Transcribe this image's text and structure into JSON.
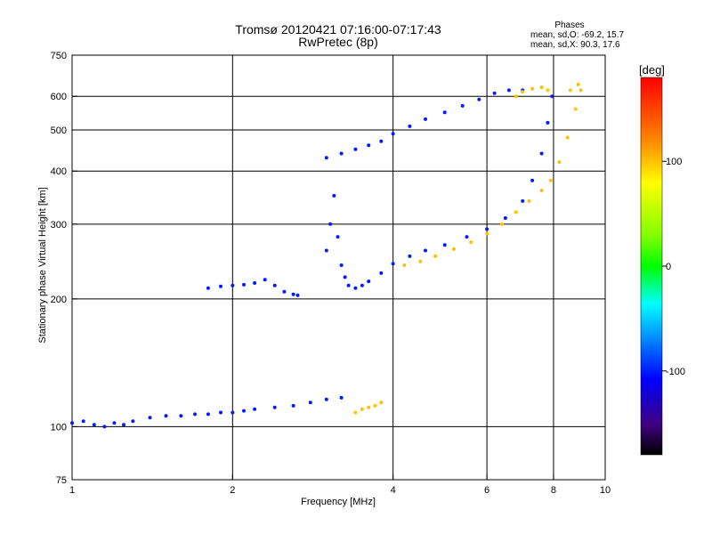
{
  "chart_data": {
    "type": "scatter",
    "title": "Tromsø 20120421 07:16:00-07:17:43",
    "subtitle": "RwPretec (8p)",
    "xlabel": "Frequency [MHz]",
    "ylabel": "Stationary phase Virtual Height [km]",
    "x_scale": "log",
    "y_scale": "log",
    "xlim": [
      1,
      10
    ],
    "ylim": [
      75,
      750
    ],
    "x_ticks": [
      1,
      2,
      4,
      6,
      8,
      10
    ],
    "y_ticks": [
      75,
      100,
      200,
      300,
      400,
      500,
      600,
      750
    ],
    "grid_x": [
      2,
      4,
      6,
      8
    ],
    "grid_y": [
      100,
      200,
      300,
      400,
      500,
      600
    ],
    "phases": {
      "title": "Phases",
      "o_text": "mean, sd,O: -69.2, 15.7",
      "x_text": "mean, sd,X:  90.3, 17.6"
    },
    "colorbar": {
      "label": "[deg]",
      "range": [
        -180,
        180
      ],
      "ticks": [
        100,
        0,
        -100
      ]
    },
    "series": [
      {
        "phase": -100,
        "points": [
          [
            1.0,
            102
          ],
          [
            1.05,
            103
          ],
          [
            1.1,
            101
          ],
          [
            1.15,
            100
          ],
          [
            1.2,
            102
          ],
          [
            1.25,
            101
          ],
          [
            1.3,
            103
          ],
          [
            1.4,
            105
          ],
          [
            1.5,
            106
          ],
          [
            1.6,
            106
          ],
          [
            1.7,
            107
          ],
          [
            1.8,
            107
          ],
          [
            1.9,
            108
          ],
          [
            2.0,
            108
          ],
          [
            2.1,
            109
          ],
          [
            2.2,
            110
          ],
          [
            2.4,
            111
          ],
          [
            2.6,
            112
          ],
          [
            2.8,
            114
          ],
          [
            3.0,
            116
          ],
          [
            3.2,
            117
          ]
        ]
      },
      {
        "phase": -100,
        "points": [
          [
            1.8,
            212
          ],
          [
            1.9,
            214
          ],
          [
            2.0,
            215
          ],
          [
            2.1,
            216
          ],
          [
            2.2,
            218
          ],
          [
            2.3,
            222
          ],
          [
            2.4,
            215
          ],
          [
            2.5,
            208
          ],
          [
            2.6,
            205
          ],
          [
            2.65,
            204
          ]
        ]
      },
      {
        "phase": -100,
        "points": [
          [
            3.0,
            260
          ],
          [
            3.05,
            300
          ],
          [
            3.1,
            350
          ],
          [
            3.15,
            280
          ],
          [
            3.2,
            240
          ],
          [
            3.25,
            225
          ],
          [
            3.3,
            215
          ],
          [
            3.4,
            212
          ],
          [
            3.5,
            215
          ],
          [
            3.6,
            220
          ],
          [
            3.8,
            230
          ],
          [
            4.0,
            242
          ],
          [
            4.3,
            252
          ],
          [
            4.6,
            260
          ],
          [
            5.0,
            268
          ],
          [
            5.5,
            280
          ],
          [
            6.0,
            292
          ],
          [
            6.5,
            310
          ],
          [
            7.0,
            340
          ],
          [
            7.3,
            380
          ],
          [
            7.6,
            440
          ],
          [
            7.8,
            520
          ],
          [
            7.95,
            600
          ]
        ]
      },
      {
        "phase": -100,
        "points": [
          [
            3.0,
            430
          ],
          [
            3.2,
            440
          ],
          [
            3.4,
            450
          ],
          [
            3.6,
            460
          ],
          [
            3.8,
            470
          ],
          [
            4.0,
            490
          ],
          [
            4.3,
            510
          ],
          [
            4.6,
            530
          ],
          [
            5.0,
            550
          ],
          [
            5.4,
            570
          ],
          [
            5.8,
            590
          ],
          [
            6.2,
            610
          ],
          [
            6.6,
            620
          ],
          [
            7.0,
            620
          ]
        ]
      },
      {
        "phase": 100,
        "points": [
          [
            3.4,
            108
          ],
          [
            3.5,
            110
          ],
          [
            3.6,
            111
          ],
          [
            3.7,
            112
          ],
          [
            3.8,
            114
          ]
        ]
      },
      {
        "phase": 100,
        "points": [
          [
            4.2,
            240
          ],
          [
            4.5,
            245
          ],
          [
            4.8,
            252
          ],
          [
            5.2,
            262
          ],
          [
            5.6,
            272
          ],
          [
            6.0,
            285
          ],
          [
            6.4,
            300
          ],
          [
            6.8,
            320
          ],
          [
            7.2,
            340
          ],
          [
            7.6,
            360
          ],
          [
            7.9,
            380
          ],
          [
            8.2,
            420
          ],
          [
            8.5,
            480
          ],
          [
            8.8,
            560
          ],
          [
            9.0,
            620
          ],
          [
            8.9,
            640
          ],
          [
            8.6,
            620
          ]
        ]
      },
      {
        "phase": 100,
        "points": [
          [
            6.8,
            600
          ],
          [
            7.0,
            615
          ],
          [
            7.3,
            625
          ],
          [
            7.6,
            630
          ],
          [
            7.8,
            620
          ]
        ]
      }
    ]
  }
}
